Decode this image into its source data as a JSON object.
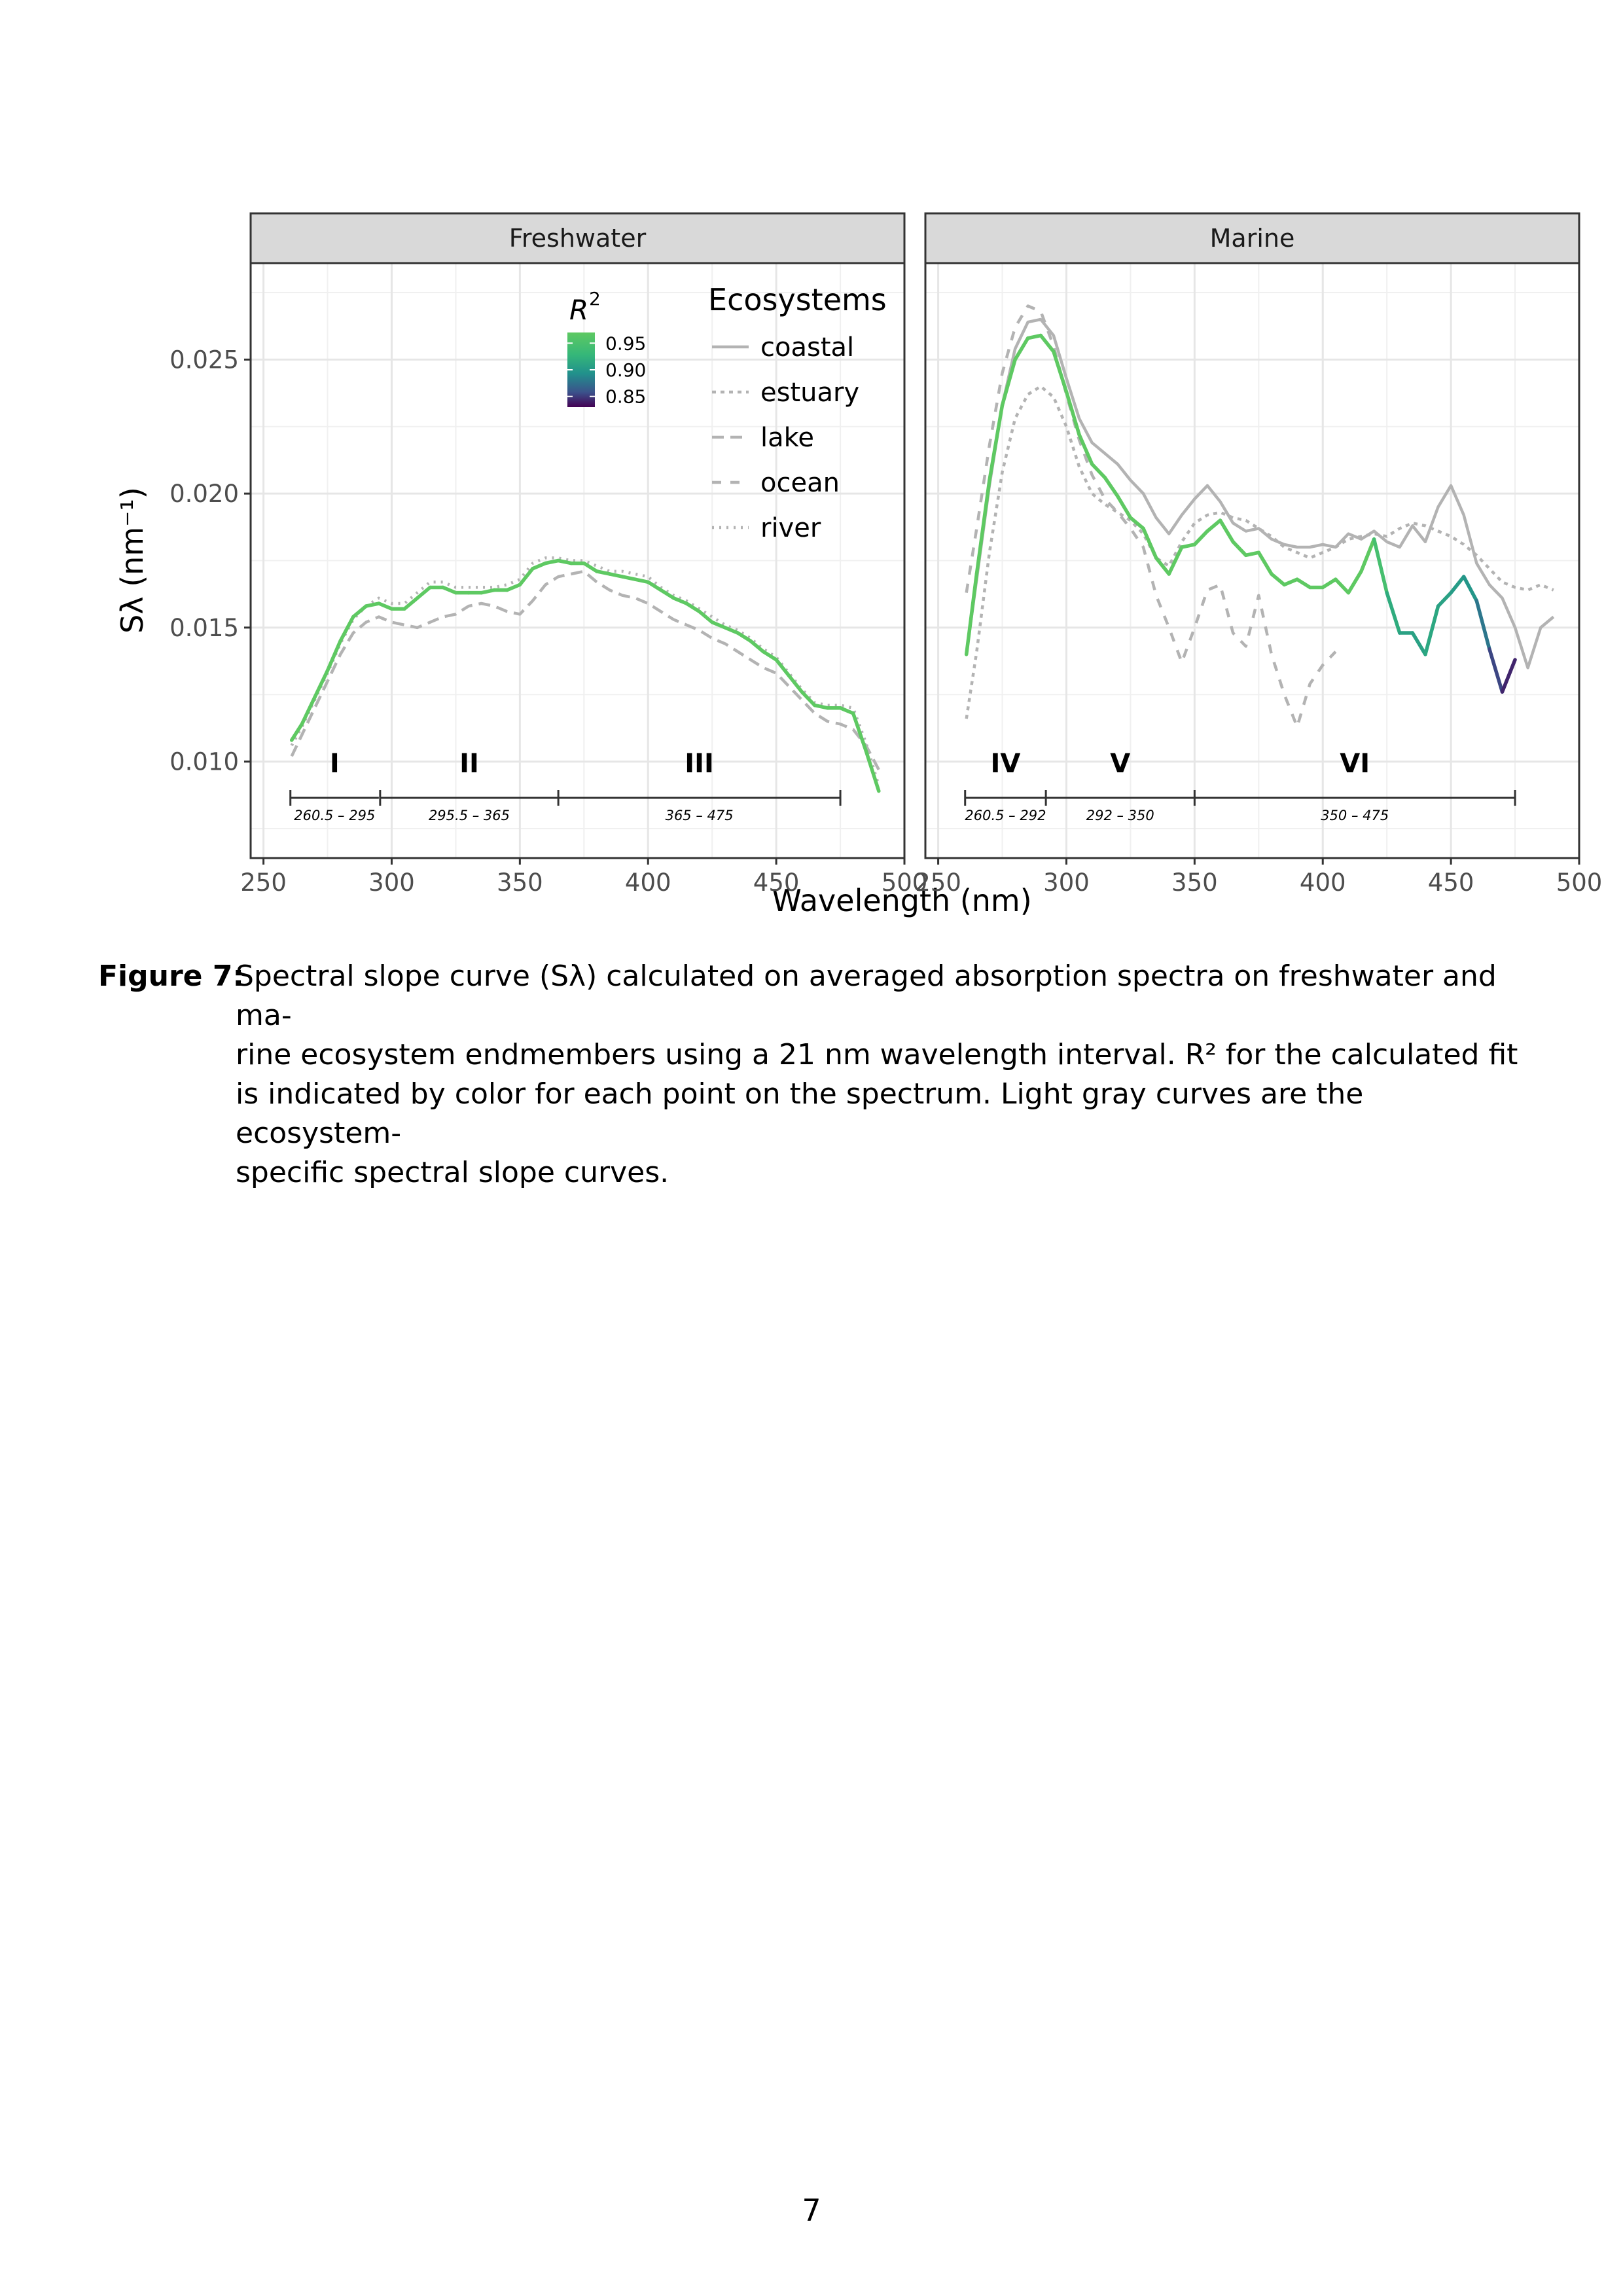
{
  "chart_data": [
    {
      "type": "line",
      "title": "",
      "panel": "Freshwater",
      "xlabel": "Wavelength (nm)",
      "ylabel": "Sλ (nm⁻¹)",
      "xlim": [
        245,
        500
      ],
      "ylim": [
        0.0064,
        0.0286
      ],
      "x_ticks": [
        250,
        300,
        350,
        400,
        450,
        500
      ],
      "y_ticks": [
        0.01,
        0.015,
        0.02,
        0.025
      ],
      "y_tick_labels": [
        "0.010",
        "0.015",
        "0.020",
        "0.025"
      ],
      "grid": true,
      "color_scale": {
        "name": "R^2",
        "ticks": [
          0.95,
          0.9,
          0.85
        ],
        "tick_labels": [
          "0.95",
          "0.90",
          "0.85"
        ]
      },
      "ecosystem_legend": {
        "title": "Ecosystems",
        "entries": [
          "coastal",
          "estuary",
          "lake",
          "ocean",
          "river"
        ]
      },
      "series": [
        {
          "name": "all",
          "x": [
            261,
            265,
            270,
            275,
            280,
            285,
            290,
            295,
            300,
            305,
            310,
            315,
            320,
            325,
            330,
            335,
            340,
            345,
            350,
            355,
            360,
            365,
            370,
            375,
            380,
            385,
            390,
            395,
            400,
            405,
            410,
            415,
            420,
            425,
            430,
            435,
            440,
            445,
            450,
            455,
            460,
            465,
            470,
            475,
            480,
            485,
            490
          ],
          "y": [
            0.0108,
            0.0114,
            0.0124,
            0.0134,
            0.0145,
            0.0154,
            0.0158,
            0.0159,
            0.0157,
            0.0157,
            0.0161,
            0.0165,
            0.0165,
            0.0163,
            0.0163,
            0.0163,
            0.0164,
            0.0164,
            0.0166,
            0.0172,
            0.0174,
            0.0175,
            0.0174,
            0.0174,
            0.0171,
            0.017,
            0.0169,
            0.0168,
            0.0167,
            0.0164,
            0.0161,
            0.0159,
            0.0156,
            0.0152,
            0.015,
            0.0148,
            0.0145,
            0.0141,
            0.0138,
            0.0132,
            0.0126,
            0.0121,
            0.012,
            0.012,
            0.0118,
            0.0104,
            0.0089
          ],
          "r2": [
            0.99,
            0.99,
            0.99,
            0.99,
            0.99,
            0.99,
            0.99,
            0.99,
            0.99,
            0.99,
            0.99,
            0.99,
            0.99,
            0.99,
            0.99,
            0.99,
            0.99,
            0.99,
            0.99,
            0.99,
            0.99,
            0.99,
            0.99,
            0.99,
            0.99,
            0.99,
            0.99,
            0.99,
            0.99,
            0.99,
            0.99,
            0.99,
            0.99,
            0.99,
            0.99,
            0.99,
            0.99,
            0.99,
            0.99,
            0.99,
            0.99,
            0.99,
            0.99,
            0.99,
            0.99,
            0.99,
            0.99
          ]
        },
        {
          "name": "lake",
          "x": [
            261,
            265,
            270,
            275,
            280,
            285,
            290,
            295,
            300,
            305,
            310,
            315,
            320,
            325,
            330,
            335,
            340,
            345,
            350,
            355,
            360,
            365,
            370,
            375,
            380,
            385,
            390,
            395,
            400,
            405,
            410,
            415,
            420,
            425,
            430,
            435,
            440,
            445,
            450,
            455,
            460,
            465,
            470,
            475,
            480,
            485,
            490
          ],
          "y": [
            0.0102,
            0.011,
            0.012,
            0.013,
            0.014,
            0.0148,
            0.0152,
            0.0154,
            0.0152,
            0.0151,
            0.015,
            0.0152,
            0.0154,
            0.0155,
            0.0158,
            0.0159,
            0.0158,
            0.0156,
            0.0155,
            0.016,
            0.0166,
            0.0169,
            0.017,
            0.0171,
            0.0167,
            0.0164,
            0.0162,
            0.0161,
            0.0159,
            0.0156,
            0.0153,
            0.0151,
            0.0149,
            0.0146,
            0.0144,
            0.0141,
            0.0138,
            0.0135,
            0.0133,
            0.0128,
            0.0123,
            0.0118,
            0.0115,
            0.0114,
            0.0112,
            0.0106,
            0.0097
          ]
        },
        {
          "name": "river",
          "x": [
            261,
            265,
            270,
            275,
            280,
            285,
            290,
            295,
            300,
            305,
            310,
            315,
            320,
            325,
            330,
            335,
            340,
            345,
            350,
            355,
            360,
            365,
            370,
            375,
            380,
            385,
            390,
            395,
            400,
            405,
            410,
            415,
            420,
            425,
            430,
            435,
            440,
            445,
            450,
            455,
            460,
            465,
            470,
            475,
            480,
            485,
            490
          ],
          "y": [
            0.0106,
            0.0113,
            0.0123,
            0.0133,
            0.0144,
            0.0153,
            0.0158,
            0.0161,
            0.0159,
            0.0159,
            0.0163,
            0.0167,
            0.0167,
            0.0165,
            0.0165,
            0.0165,
            0.0165,
            0.0166,
            0.0168,
            0.0174,
            0.0176,
            0.0176,
            0.0175,
            0.0175,
            0.0173,
            0.0171,
            0.0171,
            0.017,
            0.0169,
            0.0165,
            0.0162,
            0.016,
            0.0157,
            0.0154,
            0.0151,
            0.0149,
            0.0146,
            0.0142,
            0.0139,
            0.0133,
            0.0127,
            0.0122,
            0.0121,
            0.0121,
            0.012,
            0.0107,
            0.0091
          ]
        }
      ],
      "regions": [
        {
          "label": "I",
          "range": "260.5 – 295",
          "from": 260.5,
          "to": 295
        },
        {
          "label": "II",
          "range": "295.5 – 365",
          "from": 295.5,
          "to": 365
        },
        {
          "label": "III",
          "range": "365 – 475",
          "from": 365,
          "to": 475
        }
      ]
    },
    {
      "type": "line",
      "title": "",
      "panel": "Marine",
      "xlabel": "Wavelength (nm)",
      "ylabel": "Sλ (nm⁻¹)",
      "xlim": [
        245,
        500
      ],
      "ylim": [
        0.0064,
        0.0286
      ],
      "x_ticks": [
        250,
        300,
        350,
        400,
        450,
        500
      ],
      "grid": true,
      "series": [
        {
          "name": "all",
          "x": [
            261,
            265,
            270,
            275,
            280,
            285,
            290,
            295,
            300,
            305,
            310,
            315,
            320,
            325,
            330,
            335,
            340,
            345,
            350,
            355,
            360,
            365,
            370,
            375,
            380,
            385,
            390,
            395,
            400,
            405,
            410,
            415,
            420,
            425,
            430,
            435,
            440,
            445,
            450,
            455,
            460,
            465,
            470,
            475
          ],
          "y": [
            0.014,
            0.017,
            0.0205,
            0.0233,
            0.025,
            0.0258,
            0.0259,
            0.0253,
            0.0238,
            0.0222,
            0.0211,
            0.0206,
            0.0199,
            0.0191,
            0.0187,
            0.0176,
            0.017,
            0.018,
            0.0181,
            0.0186,
            0.019,
            0.0182,
            0.0177,
            0.0178,
            0.017,
            0.0166,
            0.0168,
            0.0165,
            0.0165,
            0.0168,
            0.0163,
            0.0171,
            0.0183,
            0.0163,
            0.0148,
            0.0148,
            0.014,
            0.0158,
            0.0163,
            0.0169,
            0.016,
            0.0142,
            0.0126,
            0.0138
          ],
          "r2": [
            0.99,
            0.99,
            0.99,
            0.99,
            0.99,
            0.99,
            0.99,
            0.99,
            0.99,
            0.99,
            0.99,
            0.99,
            0.99,
            0.99,
            0.99,
            0.99,
            0.99,
            0.99,
            0.99,
            0.99,
            0.99,
            0.99,
            0.99,
            0.99,
            0.99,
            0.99,
            0.99,
            0.99,
            0.99,
            0.99,
            0.99,
            0.99,
            0.97,
            0.93,
            0.92,
            0.91,
            0.92,
            0.92,
            0.91,
            0.91,
            0.9,
            0.87,
            0.85,
            0.84
          ]
        },
        {
          "name": "coastal",
          "x": [
            261,
            265,
            270,
            275,
            280,
            285,
            290,
            295,
            300,
            305,
            310,
            315,
            320,
            325,
            330,
            335,
            340,
            345,
            350,
            355,
            360,
            365,
            370,
            375,
            380,
            385,
            390,
            395,
            400,
            405,
            410,
            415,
            420,
            425,
            430,
            435,
            440,
            445,
            450,
            455,
            460,
            465,
            470,
            475,
            480,
            485,
            490
          ],
          "y": [
            0.014,
            0.0168,
            0.0203,
            0.0233,
            0.0254,
            0.0264,
            0.0265,
            0.0259,
            0.0243,
            0.0228,
            0.0219,
            0.0215,
            0.0211,
            0.0205,
            0.02,
            0.0191,
            0.0185,
            0.0192,
            0.0198,
            0.0203,
            0.0197,
            0.0189,
            0.0186,
            0.0187,
            0.0183,
            0.0181,
            0.018,
            0.018,
            0.0181,
            0.018,
            0.0185,
            0.0183,
            0.0186,
            0.0182,
            0.018,
            0.0188,
            0.0182,
            0.0195,
            0.0203,
            0.0192,
            0.0174,
            0.0166,
            0.0161,
            0.015,
            0.0135,
            0.015,
            0.0154
          ]
        },
        {
          "name": "estuary",
          "x": [
            261,
            265,
            270,
            275,
            280,
            285,
            290,
            295,
            300,
            305,
            310,
            315,
            320,
            325,
            330,
            335,
            340,
            345,
            350,
            355,
            360,
            365,
            370,
            375,
            380,
            385,
            390,
            395,
            400,
            405,
            410,
            415,
            420,
            425,
            430,
            435,
            440,
            445,
            450,
            455,
            460,
            465,
            470,
            475,
            480,
            485,
            490
          ],
          "y": [
            0.0116,
            0.0141,
            0.0178,
            0.0208,
            0.0228,
            0.0237,
            0.024,
            0.0236,
            0.0225,
            0.021,
            0.02,
            0.0196,
            0.0193,
            0.019,
            0.0185,
            0.0176,
            0.0173,
            0.0182,
            0.0189,
            0.0192,
            0.0193,
            0.0191,
            0.019,
            0.0187,
            0.0184,
            0.018,
            0.0178,
            0.0176,
            0.0178,
            0.018,
            0.0183,
            0.0184,
            0.0185,
            0.0184,
            0.0187,
            0.0189,
            0.0188,
            0.0186,
            0.0184,
            0.0181,
            0.0177,
            0.0172,
            0.0167,
            0.0165,
            0.0164,
            0.0166,
            0.0164
          ]
        },
        {
          "name": "ocean",
          "x": [
            261,
            265,
            270,
            275,
            280,
            285,
            290,
            295,
            300,
            305,
            310,
            315,
            320,
            325,
            330,
            335,
            340,
            345,
            350,
            355,
            360,
            365,
            370,
            375,
            380,
            385,
            390,
            395,
            400,
            405
          ],
          "y": [
            0.0163,
            0.0187,
            0.0218,
            0.0245,
            0.0262,
            0.027,
            0.0268,
            0.0255,
            0.0237,
            0.022,
            0.0207,
            0.0198,
            0.0193,
            0.0187,
            0.018,
            0.0162,
            0.015,
            0.0137,
            0.015,
            0.0164,
            0.0166,
            0.0148,
            0.0143,
            0.0162,
            0.014,
            0.0125,
            0.0113,
            0.0129,
            0.0136,
            0.0141
          ]
        }
      ],
      "regions": [
        {
          "label": "IV",
          "range": "260.5 – 292",
          "from": 260.5,
          "to": 292
        },
        {
          "label": "V",
          "range": "292 – 350",
          "from": 292,
          "to": 350
        },
        {
          "label": "VI",
          "range": "350 – 475",
          "from": 350,
          "to": 475
        }
      ]
    }
  ],
  "caption": {
    "label": "Figure 7:",
    "lines": [
      "Spectral slope curve (Sλ) calculated on averaged absorption spectra on freshwater and ma-",
      "rine ecosystem endmembers using a 21 nm wavelength interval. R² for the calculated fit",
      "is indicated by color for each point on the spectrum. Light gray curves are the ecosystem-",
      "specific spectral slope curves."
    ]
  },
  "page_number": "7"
}
